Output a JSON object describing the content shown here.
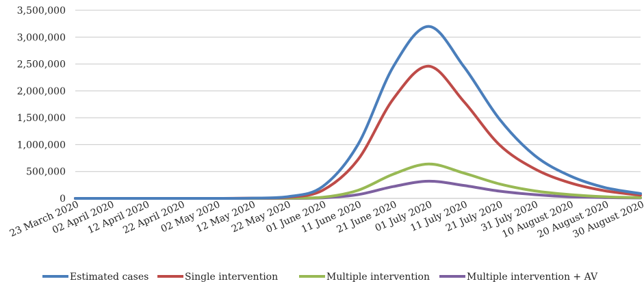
{
  "chart_data": {
    "type": "line",
    "title": "",
    "xlabel": "",
    "ylabel": "",
    "ylim": [
      0,
      3500000
    ],
    "yticks": [
      0,
      500000,
      1000000,
      1500000,
      2000000,
      2500000,
      3000000,
      3500000
    ],
    "ytick_labels": [
      "0",
      "500,000",
      "1,000,000",
      "1,500,000",
      "2,000,000",
      "2,500,000",
      "3,000,000",
      "3,500,000"
    ],
    "grid": true,
    "legend_position": "bottom",
    "categories": [
      "23 March 2020",
      "02 April 2020",
      "12 April 2020",
      "22 April 2020",
      "02 May 2020",
      "12 May 2020",
      "22 May 2020",
      "01 June 2020",
      "11 June 2020",
      "21 June 2020",
      "01 July 2020",
      "11 July 2020",
      "21 July 2020",
      "31 July 2020",
      "10 August 2020",
      "20 August 2020",
      "30 August 2020"
    ],
    "series": [
      {
        "name": "Estimated cases",
        "color": "#4a7ebb",
        "values": [
          0,
          0,
          0,
          0,
          0,
          5000,
          30000,
          220000,
          1000000,
          2450000,
          3200000,
          2450000,
          1480000,
          800000,
          420000,
          200000,
          90000
        ]
      },
      {
        "name": "Single intervention",
        "color": "#be4b48",
        "values": [
          0,
          0,
          0,
          0,
          0,
          4000,
          20000,
          150000,
          720000,
          1850000,
          2460000,
          1800000,
          1000000,
          550000,
          290000,
          140000,
          60000
        ]
      },
      {
        "name": "Multiple intervention",
        "color": "#98b954",
        "values": [
          0,
          0,
          0,
          0,
          0,
          0,
          5000,
          20000,
          150000,
          450000,
          640000,
          470000,
          270000,
          140000,
          70000,
          30000,
          15000
        ]
      },
      {
        "name": "Multiple intervention + AV",
        "color": "#7d60a0",
        "values": [
          0,
          0,
          0,
          0,
          0,
          0,
          0,
          10000,
          70000,
          220000,
          320000,
          240000,
          135000,
          70000,
          30000,
          15000,
          8000
        ]
      }
    ]
  }
}
